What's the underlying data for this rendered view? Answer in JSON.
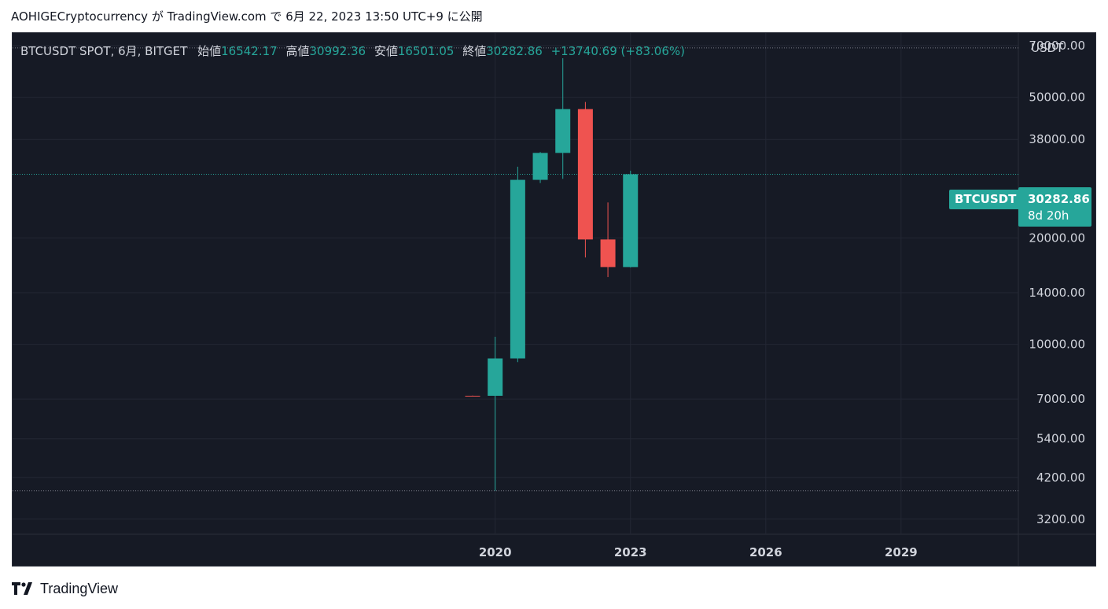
{
  "publication": {
    "author": "AOHIGECryptocurrency",
    "text": "AOHIGECryptocurrency が TradingView.com で 6月 22, 2023 13:50 UTC+9 に公開"
  },
  "legend": {
    "symbol": "BTCUSDT SPOT, 6月, BITGET",
    "open_label": "始値",
    "open": "16542.17",
    "high_label": "高値",
    "high": "30992.36",
    "low_label": "安値",
    "low": "16501.05",
    "close_label": "終値",
    "close": "30282.86",
    "change": "+13740.69 (+83.06%)"
  },
  "price_axis": {
    "unit": "USDT"
  },
  "last_price": {
    "symbol": "BTCUSDT",
    "price": "30282.86",
    "countdown": "8d 20h"
  },
  "brand": {
    "name": "TradingView"
  },
  "colors": {
    "up": "#26a69a",
    "down": "#ef5350",
    "background": "#161a25",
    "grid": "#232734",
    "text": "#d1d4dc"
  },
  "chart_data": {
    "type": "candlestick",
    "interval": "6M",
    "scale": "log",
    "ylim": [
      2900,
      76000
    ],
    "xlim": [
      2009.3,
      2031.6
    ],
    "y_ticks": [
      3200,
      4200,
      5400,
      7000,
      10000,
      14000,
      20000,
      38000,
      50000,
      70000
    ],
    "y_tick_labels": [
      "3200.00",
      "4200.00",
      "5400.00",
      "7000.00",
      "10000.00",
      "14000.00",
      "20000.00",
      "38000.00",
      "50000.00",
      "70000.00"
    ],
    "x_ticks": [
      2020,
      2023,
      2026,
      2029
    ],
    "x_tick_labels": [
      "2020",
      "2023",
      "2026",
      "2029"
    ],
    "candles": [
      {
        "t": 2019.5,
        "o": 7150,
        "h": 7160,
        "l": 7140,
        "c": 7140
      },
      {
        "t": 2020.0,
        "o": 7150,
        "h": 10500,
        "l": 3850,
        "c": 9120
      },
      {
        "t": 2020.5,
        "o": 9120,
        "h": 31800,
        "l": 8900,
        "c": 29200
      },
      {
        "t": 2021.0,
        "o": 29200,
        "h": 35000,
        "l": 28600,
        "c": 34800
      },
      {
        "t": 2021.5,
        "o": 34800,
        "h": 64500,
        "l": 29400,
        "c": 46300
      },
      {
        "t": 2022.0,
        "o": 46300,
        "h": 48500,
        "l": 17600,
        "c": 19800
      },
      {
        "t": 2022.5,
        "o": 19800,
        "h": 25200,
        "l": 15500,
        "c": 16542.17
      },
      {
        "t": 2023.0,
        "o": 16542.17,
        "h": 30992.36,
        "l": 16501.05,
        "c": 30282.86
      }
    ],
    "reference_lines": [
      {
        "value": 69000,
        "style": "dotted",
        "color": "#787b86"
      },
      {
        "value": 3850,
        "style": "dotted",
        "color": "#787b86"
      },
      {
        "value": 30282.86,
        "style": "dotted",
        "color": "#26a69a"
      }
    ]
  }
}
